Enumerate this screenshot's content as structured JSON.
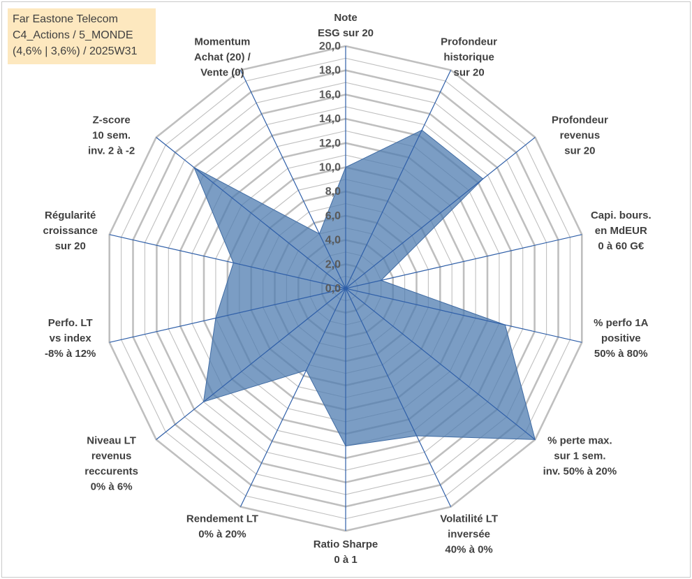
{
  "title_box": {
    "lines": [
      "Far Eastone Telecom",
      "C4_Actions / 5_MONDE",
      "(4,6% | 3,6%) / 2025W31"
    ]
  },
  "chart_data": {
    "type": "radar",
    "rlim": [
      0,
      20
    ],
    "grid": true,
    "ticks": [
      "0,0",
      "2,0",
      "4,0",
      "6,0",
      "8,0",
      "10,0",
      "12,0",
      "14,0",
      "16,0",
      "18,0",
      "20,0"
    ],
    "axes": [
      {
        "label": [
          "Note",
          "ESG sur 20"
        ]
      },
      {
        "label": [
          "Profondeur",
          "historique",
          "sur 20"
        ]
      },
      {
        "label": [
          "Profondeur",
          "revenus",
          "sur 20"
        ]
      },
      {
        "label": [
          "Capi. bours.",
          "en MdEUR",
          "0 à 60 G€"
        ]
      },
      {
        "label": [
          "% perfo 1A",
          "positive",
          "50% à 80%"
        ]
      },
      {
        "label": [
          "% perte max.",
          "sur 1 sem.",
          "inv. 50% à 20%"
        ]
      },
      {
        "label": [
          "Volatilité LT",
          "inversée",
          "40% à 0%"
        ]
      },
      {
        "label": [
          "Ratio Sharpe",
          "0 à 1"
        ]
      },
      {
        "label": [
          "Rendement LT",
          "0% à 20%"
        ]
      },
      {
        "label": [
          "Niveau LT",
          "revenus",
          "reccurents",
          "0% à 6%"
        ]
      },
      {
        "label": [
          "Perfo. LT",
          "vs index",
          "-8% à 12%"
        ]
      },
      {
        "label": [
          "Régularité",
          "croissance",
          "sur 20"
        ]
      },
      {
        "label": [
          "Z-score",
          "10 sem.",
          "inv. 2 à -2"
        ]
      },
      {
        "label": [
          "Momentum",
          "Achat (20) /",
          "Vente (0)"
        ]
      }
    ],
    "series": [
      {
        "values": [
          10.0,
          14.5,
          14.5,
          3.0,
          13.5,
          20.0,
          13.5,
          13.0,
          7.5,
          15.0,
          11.0,
          9.5,
          16.0,
          5.0
        ]
      }
    ],
    "colors": {
      "fill": "#4f7cb0",
      "stroke": "#3f6ba3",
      "grid": "#bfbfbf",
      "spoke": "#2f5fa8"
    }
  }
}
